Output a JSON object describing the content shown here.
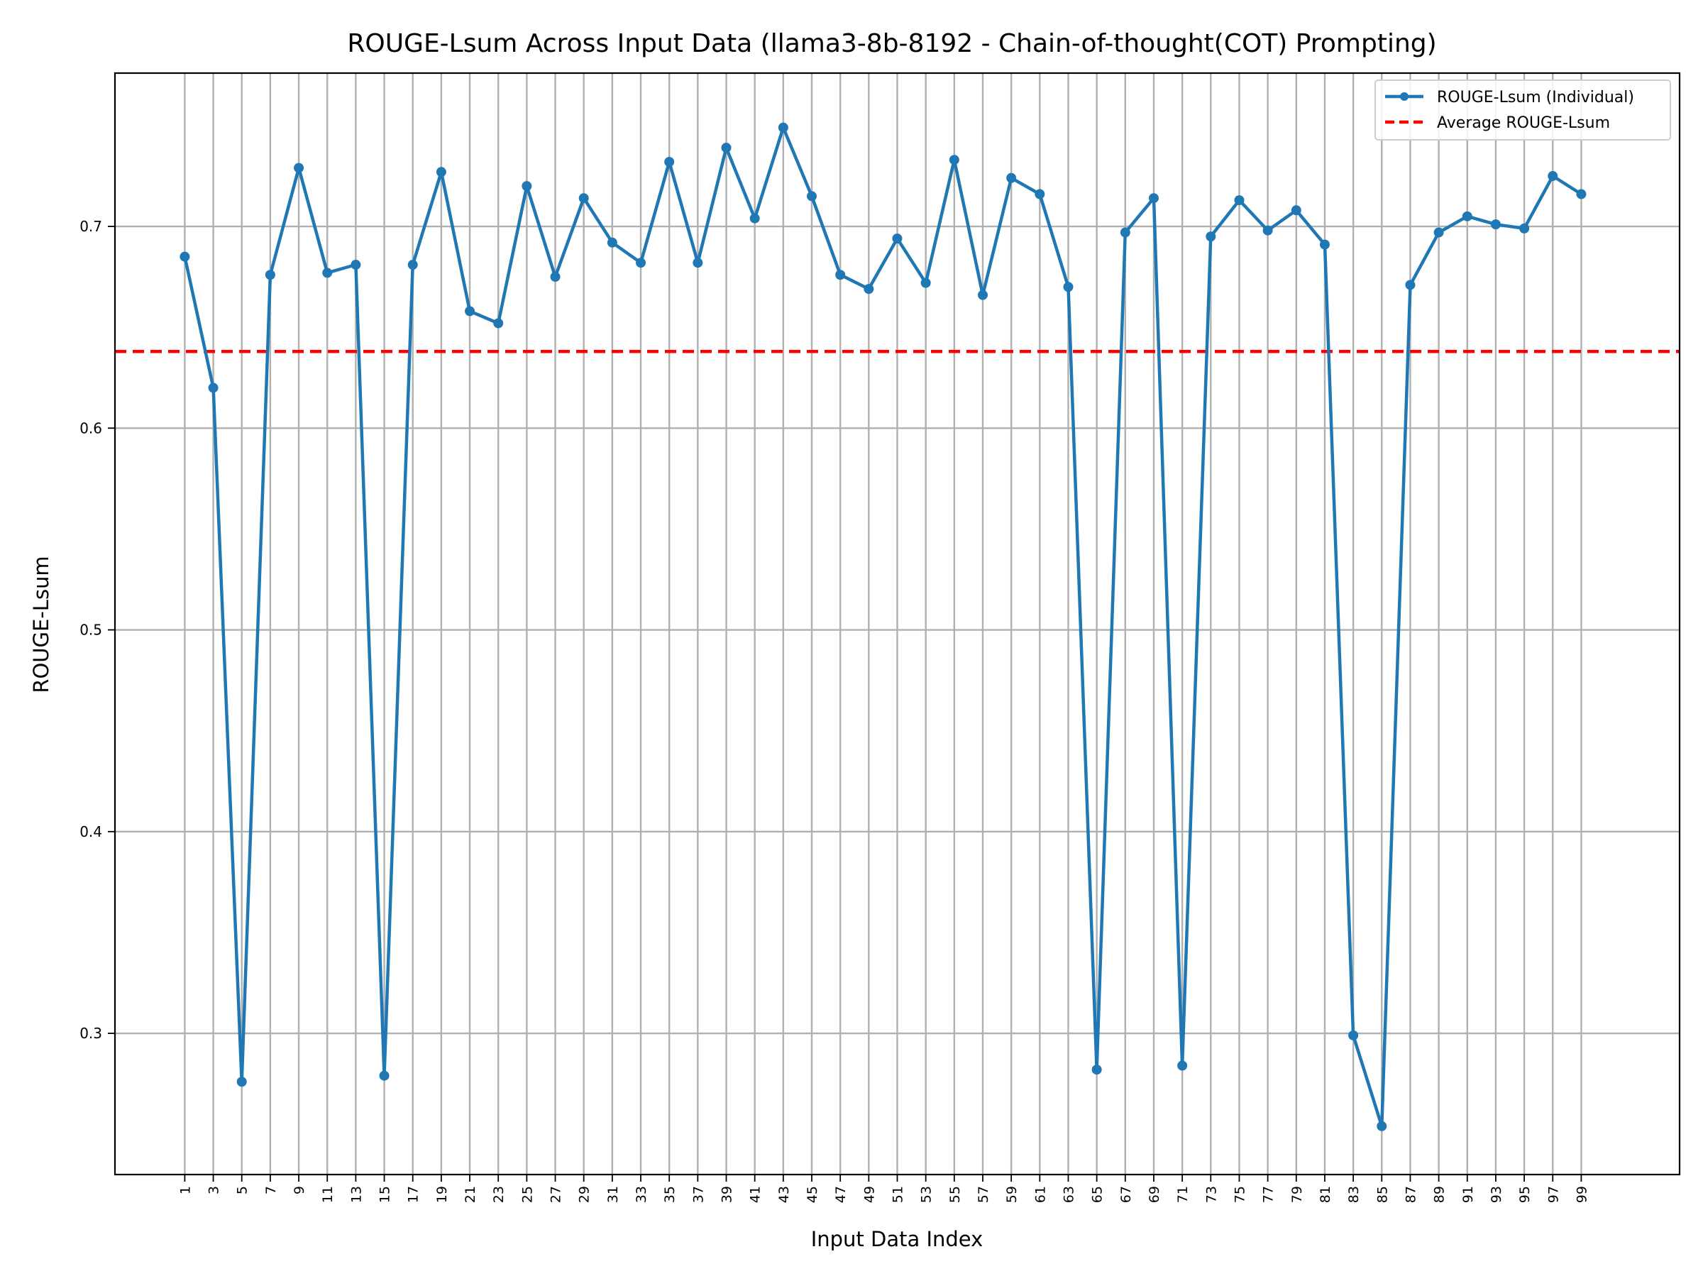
{
  "chart_data": {
    "type": "line",
    "title": "ROUGE-Lsum Across Input Data (llama3-8b-8192 - Chain-of-thought(COT) Prompting)",
    "xlabel": "Input Data Index",
    "ylabel": "ROUGE-Lsum",
    "x": [
      1,
      3,
      5,
      7,
      9,
      11,
      13,
      15,
      17,
      19,
      21,
      23,
      25,
      27,
      29,
      31,
      33,
      35,
      37,
      39,
      41,
      43,
      45,
      47,
      49,
      51,
      53,
      55,
      57,
      59,
      61,
      63,
      65,
      67,
      69,
      71,
      73,
      75,
      77,
      79,
      81,
      83,
      85,
      87,
      89,
      91,
      93,
      95,
      97,
      99
    ],
    "xticks": [
      "1",
      "3",
      "5",
      "7",
      "9",
      "11",
      "13",
      "15",
      "17",
      "19",
      "21",
      "23",
      "25",
      "27",
      "29",
      "31",
      "33",
      "35",
      "37",
      "39",
      "41",
      "43",
      "45",
      "47",
      "49",
      "51",
      "53",
      "55",
      "57",
      "59",
      "61",
      "63",
      "65",
      "67",
      "69",
      "71",
      "73",
      "75",
      "77",
      "79",
      "81",
      "83",
      "85",
      "87",
      "89",
      "91",
      "93",
      "95",
      "97",
      "99"
    ],
    "yticks": [
      "0.3",
      "0.4",
      "0.5",
      "0.6",
      "0.7"
    ],
    "yticks_values": [
      0.3,
      0.4,
      0.5,
      0.6,
      0.7
    ],
    "xlim": [
      -3.9,
      105.9
    ],
    "ylim": [
      0.23,
      0.776
    ],
    "grid": true,
    "legend_position": "top-right",
    "series": [
      {
        "name": "ROUGE-Lsum (Individual)",
        "color": "#1f77b4",
        "marker": "circle",
        "values": [
          0.685,
          0.62,
          0.276,
          0.676,
          0.729,
          0.677,
          0.681,
          0.279,
          0.681,
          0.727,
          0.658,
          0.652,
          0.72,
          0.675,
          0.714,
          0.692,
          0.682,
          0.732,
          0.682,
          0.739,
          0.704,
          0.749,
          0.715,
          0.676,
          0.669,
          0.694,
          0.672,
          0.733,
          0.666,
          0.724,
          0.716,
          0.67,
          0.282,
          0.697,
          0.714,
          0.284,
          0.695,
          0.713,
          0.698,
          0.708,
          0.691,
          0.299,
          0.254,
          0.671,
          0.697,
          0.705,
          0.701,
          0.699,
          0.725,
          0.716
        ]
      },
      {
        "name": "Average ROUGE-Lsum",
        "color": "#ff0000",
        "style": "dashed",
        "value": 0.638
      }
    ]
  }
}
